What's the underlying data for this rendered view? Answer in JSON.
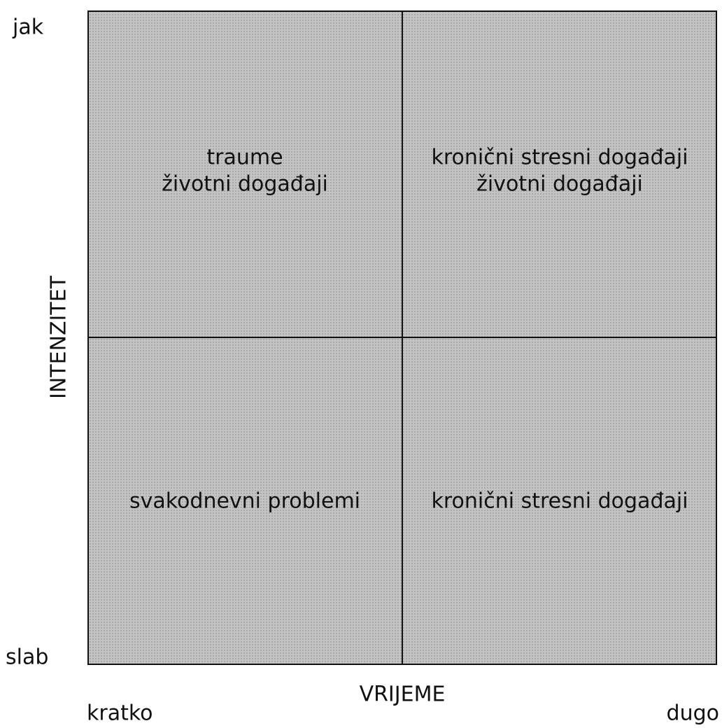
{
  "y_axis": {
    "label": "INTENZITET",
    "top": "jak",
    "bottom": "slab"
  },
  "x_axis": {
    "label": "VRIJEME",
    "left": "kratko",
    "right": "dugo"
  },
  "quadrants": [
    {
      "lines": [
        "traume",
        "životni događaji"
      ]
    },
    {
      "lines": [
        "kronični stresni događaji",
        "životni događaji"
      ]
    },
    {
      "lines": [
        "svakodnevni problemi"
      ]
    },
    {
      "lines": [
        "kronični stresni događaji"
      ]
    }
  ]
}
